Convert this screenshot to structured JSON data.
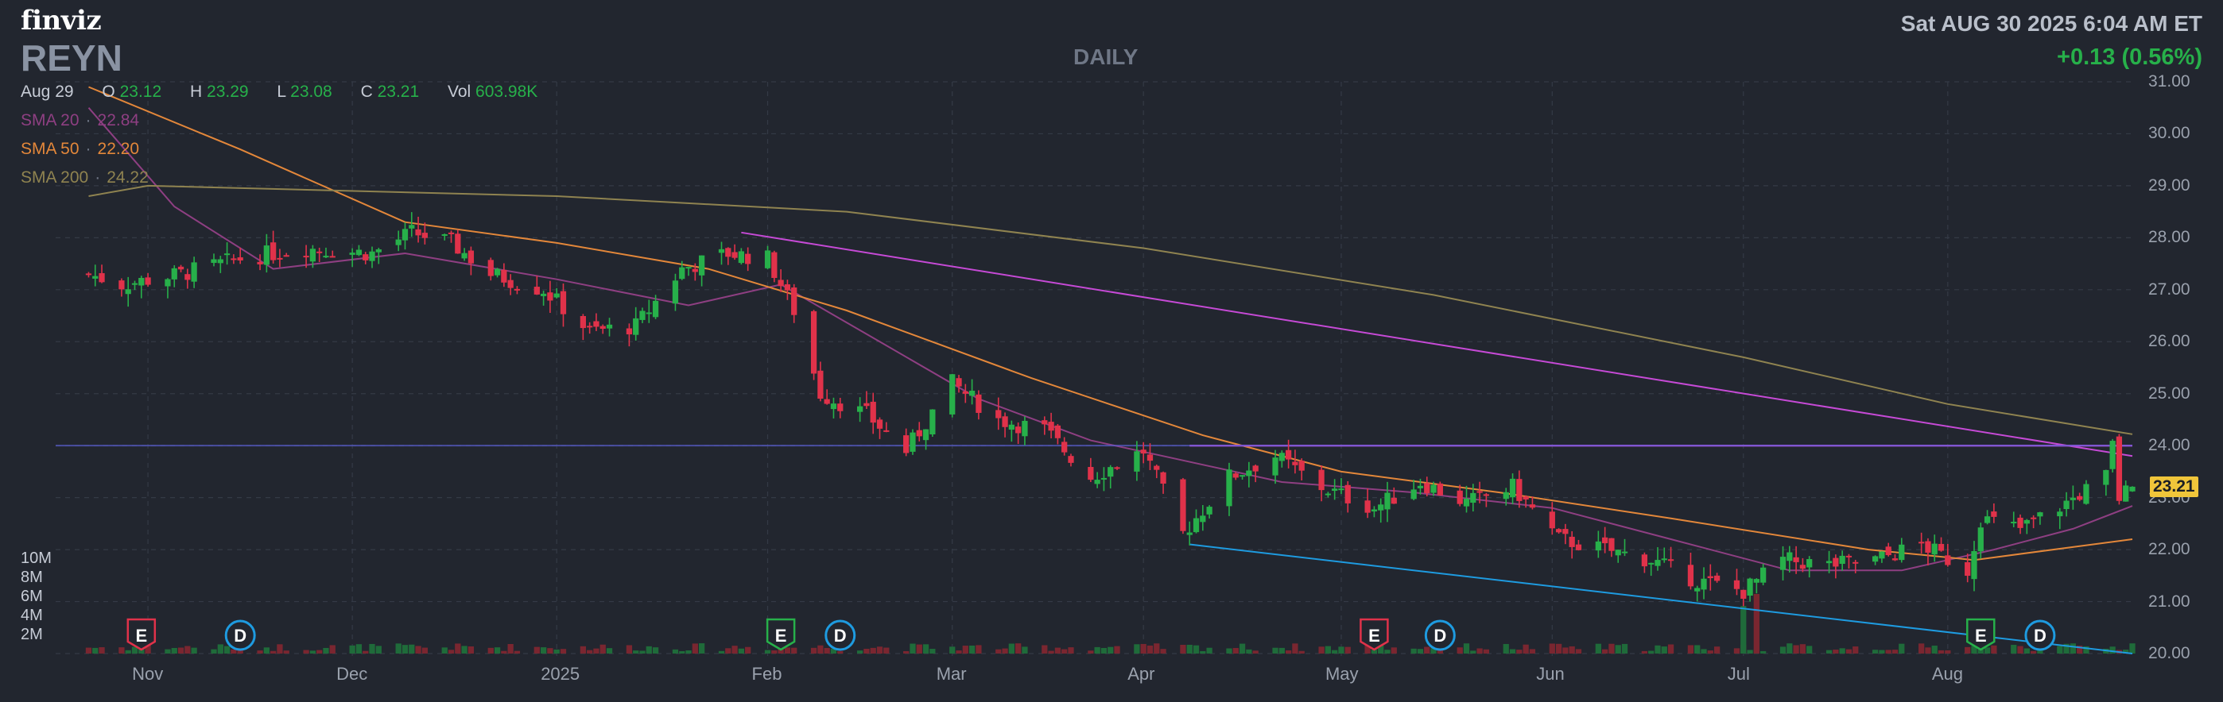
{
  "header": {
    "logo": "finviz",
    "ticker": "REYN",
    "period": "DAILY",
    "datetime": "Sat AUG 30 2025 6:04 AM ET",
    "change": "+0.13 (0.56%)"
  },
  "ohlc": {
    "date": "Aug 29",
    "o_label": "O",
    "o": "23.12",
    "h_label": "H",
    "h": "23.29",
    "l_label": "L",
    "l": "23.08",
    "c_label": "C",
    "c": "23.21",
    "vol_label": "Vol",
    "vol": "603.98K"
  },
  "sma": [
    {
      "label": "SMA 20",
      "sep": "·",
      "value": "22.84",
      "color": "#8e3f82"
    },
    {
      "label": "SMA 50",
      "sep": "·",
      "value": "22.20",
      "color": "#e3873a"
    },
    {
      "label": "SMA 200",
      "sep": "·",
      "value": "24.22",
      "color": "#8f8350"
    }
  ],
  "last_price_tag": "23.21",
  "colors": {
    "up": "#27b04a",
    "down": "#e0324a",
    "sma20": "#8e3f82",
    "sma50": "#e3873a",
    "sma200": "#8f8350",
    "resistance": "#c64ad6",
    "support": "#1e9be0",
    "horizontal": "#5a5ed0",
    "volume_up": "#1f6b3a",
    "volume_down": "#7a2630"
  },
  "chart_data": {
    "type": "candlestick",
    "ticker": "REYN",
    "period": "daily",
    "ylim": [
      20.0,
      31.0
    ],
    "y_ticks": [
      "20.00",
      "21.00",
      "22.00",
      "23.00",
      "24.00",
      "25.00",
      "26.00",
      "27.00",
      "28.00",
      "29.00",
      "30.00",
      "31.00"
    ],
    "x_ticks": [
      {
        "label": "Nov",
        "date": "2024-11-01"
      },
      {
        "label": "Dec",
        "date": "2024-12-02"
      },
      {
        "label": "2025",
        "date": "2025-01-02"
      },
      {
        "label": "Feb",
        "date": "2025-02-03"
      },
      {
        "label": "Mar",
        "date": "2025-03-03"
      },
      {
        "label": "Apr",
        "date": "2025-04-01"
      },
      {
        "label": "May",
        "date": "2025-05-01"
      },
      {
        "label": "Jun",
        "date": "2025-06-02"
      },
      {
        "label": "Jul",
        "date": "2025-07-01"
      },
      {
        "label": "Aug",
        "date": "2025-08-01"
      }
    ],
    "volume_ticks": [
      "10M",
      "8M",
      "6M",
      "4M",
      "2M"
    ],
    "anchors": [
      {
        "date": "2024-10-23",
        "close": 27.3
      },
      {
        "date": "2024-10-28",
        "close": 27.1
      },
      {
        "date": "2024-11-06",
        "close": 27.3
      },
      {
        "date": "2024-11-15",
        "close": 27.6
      },
      {
        "date": "2024-11-25",
        "close": 27.8
      },
      {
        "date": "2024-12-05",
        "close": 27.7
      },
      {
        "date": "2024-12-11",
        "close": 28.1
      },
      {
        "date": "2024-12-17",
        "close": 27.9
      },
      {
        "date": "2024-12-23",
        "close": 27.3
      },
      {
        "date": "2024-12-31",
        "close": 27.0
      },
      {
        "date": "2025-01-07",
        "close": 26.2
      },
      {
        "date": "2025-01-14",
        "close": 26.3
      },
      {
        "date": "2025-01-21",
        "close": 27.4
      },
      {
        "date": "2025-01-28",
        "close": 27.7
      },
      {
        "date": "2025-02-03",
        "close": 27.6
      },
      {
        "date": "2025-02-07",
        "close": 26.6
      },
      {
        "date": "2025-02-11",
        "close": 25.0
      },
      {
        "date": "2025-02-18",
        "close": 24.6
      },
      {
        "date": "2025-02-24",
        "close": 23.9
      },
      {
        "date": "2025-03-03",
        "close": 25.2
      },
      {
        "date": "2025-03-10",
        "close": 24.5
      },
      {
        "date": "2025-03-17",
        "close": 24.3
      },
      {
        "date": "2025-03-24",
        "close": 23.4
      },
      {
        "date": "2025-04-01",
        "close": 23.9
      },
      {
        "date": "2025-04-07",
        "close": 22.3
      },
      {
        "date": "2025-04-14",
        "close": 23.4
      },
      {
        "date": "2025-04-21",
        "close": 23.8
      },
      {
        "date": "2025-04-28",
        "close": 23.2
      },
      {
        "date": "2025-05-06",
        "close": 22.8
      },
      {
        "date": "2025-05-13",
        "close": 23.3
      },
      {
        "date": "2025-05-20",
        "close": 22.9
      },
      {
        "date": "2025-05-27",
        "close": 23.2
      },
      {
        "date": "2025-06-03",
        "close": 22.2
      },
      {
        "date": "2025-06-10",
        "close": 22.0
      },
      {
        "date": "2025-06-17",
        "close": 21.8
      },
      {
        "date": "2025-06-24",
        "close": 21.4
      },
      {
        "date": "2025-07-01",
        "close": 21.2
      },
      {
        "date": "2025-07-07",
        "close": 21.8
      },
      {
        "date": "2025-07-14",
        "close": 21.7
      },
      {
        "date": "2025-07-21",
        "close": 21.8
      },
      {
        "date": "2025-07-28",
        "close": 22.1
      },
      {
        "date": "2025-08-04",
        "close": 21.6
      },
      {
        "date": "2025-08-06",
        "close": 22.6
      },
      {
        "date": "2025-08-12",
        "close": 22.4
      },
      {
        "date": "2025-08-19",
        "close": 22.9
      },
      {
        "date": "2025-08-25",
        "close": 23.4
      },
      {
        "date": "2025-08-26",
        "close": 24.0
      },
      {
        "date": "2025-08-27",
        "close": 23.0
      },
      {
        "date": "2025-08-29",
        "close": 23.21
      }
    ],
    "sma20": [
      {
        "date": "2024-10-23",
        "value": 30.5
      },
      {
        "date": "2024-11-05",
        "value": 28.6
      },
      {
        "date": "2024-11-20",
        "value": 27.4
      },
      {
        "date": "2024-12-10",
        "value": 27.7
      },
      {
        "date": "2025-01-02",
        "value": 27.2
      },
      {
        "date": "2025-01-22",
        "value": 26.7
      },
      {
        "date": "2025-02-05",
        "value": 27.1
      },
      {
        "date": "2025-02-20",
        "value": 26.0
      },
      {
        "date": "2025-03-07",
        "value": 24.9
      },
      {
        "date": "2025-03-24",
        "value": 24.1
      },
      {
        "date": "2025-04-04",
        "value": 23.8
      },
      {
        "date": "2025-04-22",
        "value": 23.3
      },
      {
        "date": "2025-05-12",
        "value": 23.1
      },
      {
        "date": "2025-06-02",
        "value": 22.8
      },
      {
        "date": "2025-06-20",
        "value": 22.2
      },
      {
        "date": "2025-07-08",
        "value": 21.6
      },
      {
        "date": "2025-07-25",
        "value": 21.6
      },
      {
        "date": "2025-08-08",
        "value": 22.0
      },
      {
        "date": "2025-08-20",
        "value": 22.4
      },
      {
        "date": "2025-08-29",
        "value": 22.84
      }
    ],
    "sma50": [
      {
        "date": "2024-10-23",
        "value": 30.9
      },
      {
        "date": "2024-11-15",
        "value": 29.7
      },
      {
        "date": "2024-12-10",
        "value": 28.3
      },
      {
        "date": "2025-01-02",
        "value": 27.9
      },
      {
        "date": "2025-01-25",
        "value": 27.4
      },
      {
        "date": "2025-02-15",
        "value": 26.6
      },
      {
        "date": "2025-03-15",
        "value": 25.3
      },
      {
        "date": "2025-04-10",
        "value": 24.2
      },
      {
        "date": "2025-05-01",
        "value": 23.5
      },
      {
        "date": "2025-05-25",
        "value": 23.1
      },
      {
        "date": "2025-06-20",
        "value": 22.6
      },
      {
        "date": "2025-07-20",
        "value": 22.0
      },
      {
        "date": "2025-08-05",
        "value": 21.8
      },
      {
        "date": "2025-08-29",
        "value": 22.2
      }
    ],
    "sma200": [
      {
        "date": "2024-10-23",
        "value": 28.8
      },
      {
        "date": "2024-11-01",
        "value": 29.0
      },
      {
        "date": "2025-01-02",
        "value": 28.8
      },
      {
        "date": "2025-02-15",
        "value": 28.5
      },
      {
        "date": "2025-04-01",
        "value": 27.8
      },
      {
        "date": "2025-05-15",
        "value": 26.9
      },
      {
        "date": "2025-07-01",
        "value": 25.7
      },
      {
        "date": "2025-08-01",
        "value": 24.8
      },
      {
        "date": "2025-08-29",
        "value": 24.22
      }
    ],
    "trendlines": [
      {
        "name": "resistance",
        "from": {
          "date": "2025-01-30",
          "value": 28.1
        },
        "to": {
          "date": "2025-08-29",
          "value": 23.8
        }
      },
      {
        "name": "support",
        "from": {
          "date": "2025-04-08",
          "value": 22.1
        },
        "to": {
          "date": "2025-08-29",
          "value": 20.0
        }
      },
      {
        "name": "horizontal",
        "from": {
          "date": "2025-04-08",
          "value": 24.0
        },
        "to": {
          "date": "2025-08-29",
          "value": 24.0
        }
      },
      {
        "name": "horizontal-full",
        "from": {
          "date": "2024-10-18",
          "value": 24.0
        },
        "to": {
          "date": "2025-08-29",
          "value": 24.0
        }
      }
    ],
    "events": [
      {
        "type": "E",
        "date": "2024-10-31",
        "color": "#e0324a"
      },
      {
        "type": "D",
        "date": "2024-11-15",
        "color": "#1e9be0"
      },
      {
        "type": "E",
        "date": "2025-02-05",
        "color": "#27b04a"
      },
      {
        "type": "D",
        "date": "2025-02-14",
        "color": "#1e9be0"
      },
      {
        "type": "E",
        "date": "2025-05-06",
        "color": "#e0324a"
      },
      {
        "type": "D",
        "date": "2025-05-16",
        "color": "#1e9be0"
      },
      {
        "type": "E",
        "date": "2025-08-06",
        "color": "#27b04a"
      },
      {
        "type": "D",
        "date": "2025-08-15",
        "color": "#1e9be0"
      }
    ]
  }
}
